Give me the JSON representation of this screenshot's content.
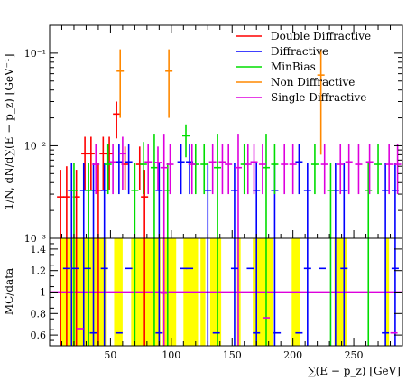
{
  "chart_data": [
    {
      "panel": "main",
      "type": "scatter",
      "style": "error-bar histogram",
      "xlabel": "∑(E − p_z) [GeV]",
      "ylabel": "1/N, dN/d∑(E − p_z) [GeV⁻¹]",
      "xlim": [
        0,
        290
      ],
      "ylim": [
        0.001,
        0.2
      ],
      "yscale": "log",
      "x_ticks": [
        50,
        100,
        150,
        200,
        250
      ],
      "y_tick_labels": [
        {
          "value": 0.001,
          "text": "10⁻³"
        },
        {
          "value": 0.01,
          "text": "10⁻²"
        },
        {
          "value": 0.1,
          "text": "10⁻¹"
        }
      ],
      "grid": false,
      "legend_position": "top-right",
      "series": [
        {
          "name": "Double Diffractive",
          "color": "#ff0000",
          "points": [
            {
              "x": 9,
              "y": 0.0028,
              "lo": 0.001,
              "hi": 0.0055
            },
            {
              "x": 14,
              "y": 0.0028,
              "lo": 0.001,
              "hi": 0.006
            },
            {
              "x": 22,
              "y": 0.0028,
              "lo": 0.001,
              "hi": 0.0055
            },
            {
              "x": 29,
              "y": 0.0082,
              "lo": 0.0033,
              "hi": 0.0125
            },
            {
              "x": 34,
              "y": 0.0082,
              "lo": 0.0033,
              "hi": 0.0125
            },
            {
              "x": 40,
              "y": 0.0033,
              "lo": 0.001,
              "hi": 0.0065
            },
            {
              "x": 44,
              "y": 0.0082,
              "lo": 0.0033,
              "hi": 0.0125
            },
            {
              "x": 49,
              "y": 0.0082,
              "lo": 0.0033,
              "hi": 0.0125
            },
            {
              "x": 55,
              "y": 0.022,
              "lo": 0.012,
              "hi": 0.03
            },
            {
              "x": 62,
              "y": 0.0063,
              "lo": 0.0033,
              "hi": 0.0098
            },
            {
              "x": 74,
              "y": 0.0063,
              "lo": 0.0033,
              "hi": 0.0098
            },
            {
              "x": 78,
              "y": 0.0028,
              "lo": 0.001,
              "hi": 0.0055
            }
          ]
        },
        {
          "name": "Diffractive",
          "color": "#0000ff",
          "points": [
            {
              "x": 18,
              "y": 0.0033,
              "lo": 0.001,
              "hi": 0.0065
            },
            {
              "x": 28,
              "y": 0.0033,
              "lo": 0.001,
              "hi": 0.0065
            },
            {
              "x": 36,
              "y": 0.0033,
              "lo": 0.001,
              "hi": 0.0065
            },
            {
              "x": 45,
              "y": 0.0033,
              "lo": 0.001,
              "hi": 0.0065
            },
            {
              "x": 57,
              "y": 0.0067,
              "lo": 0.003,
              "hi": 0.0105
            },
            {
              "x": 65,
              "y": 0.0067,
              "lo": 0.003,
              "hi": 0.0105
            },
            {
              "x": 90,
              "y": 0.0033,
              "lo": 0.001,
              "hi": 0.0065
            },
            {
              "x": 108,
              "y": 0.0067,
              "lo": 0.003,
              "hi": 0.0105
            },
            {
              "x": 115,
              "y": 0.0067,
              "lo": 0.003,
              "hi": 0.0105
            },
            {
              "x": 130,
              "y": 0.0033,
              "lo": 0.001,
              "hi": 0.0065
            },
            {
              "x": 152,
              "y": 0.0033,
              "lo": 0.001,
              "hi": 0.0065
            },
            {
              "x": 170,
              "y": 0.0033,
              "lo": 0.001,
              "hi": 0.0065
            },
            {
              "x": 185,
              "y": 0.0033,
              "lo": 0.001,
              "hi": 0.0065
            },
            {
              "x": 205,
              "y": 0.0067,
              "lo": 0.003,
              "hi": 0.0105
            },
            {
              "x": 212,
              "y": 0.0033,
              "lo": 0.001,
              "hi": 0.0065
            },
            {
              "x": 235,
              "y": 0.0033,
              "lo": 0.001,
              "hi": 0.0065
            },
            {
              "x": 242,
              "y": 0.0033,
              "lo": 0.001,
              "hi": 0.0065
            },
            {
              "x": 276,
              "y": 0.0033,
              "lo": 0.001,
              "hi": 0.0065
            },
            {
              "x": 284,
              "y": 0.0033,
              "lo": 0.001,
              "hi": 0.0065
            }
          ]
        },
        {
          "name": "MinBias",
          "color": "#00dd00",
          "points": [
            {
              "x": 20,
              "y": 0.0033,
              "lo": 0.001,
              "hi": 0.0065
            },
            {
              "x": 32,
              "y": 0.0033,
              "lo": 0.001,
              "hi": 0.0065
            },
            {
              "x": 48,
              "y": 0.0063,
              "lo": 0.003,
              "hi": 0.0105
            },
            {
              "x": 70,
              "y": 0.0033,
              "lo": 0.001,
              "hi": 0.0065
            },
            {
              "x": 77,
              "y": 0.0063,
              "lo": 0.003,
              "hi": 0.011
            },
            {
              "x": 86,
              "y": 0.0058,
              "lo": 0.001,
              "hi": 0.0135
            },
            {
              "x": 97,
              "y": 0.0033,
              "lo": 0.001,
              "hi": 0.0065
            },
            {
              "x": 112,
              "y": 0.0128,
              "lo": 0.0075,
              "hi": 0.017
            },
            {
              "x": 120,
              "y": 0.0063,
              "lo": 0.003,
              "hi": 0.0105
            },
            {
              "x": 127,
              "y": 0.0063,
              "lo": 0.003,
              "hi": 0.0105
            },
            {
              "x": 138,
              "y": 0.0058,
              "lo": 0.001,
              "hi": 0.0135
            },
            {
              "x": 160,
              "y": 0.0063,
              "lo": 0.003,
              "hi": 0.0105
            },
            {
              "x": 178,
              "y": 0.0058,
              "lo": 0.001,
              "hi": 0.0135
            },
            {
              "x": 185,
              "y": 0.0063,
              "lo": 0.003,
              "hi": 0.0105
            },
            {
              "x": 218,
              "y": 0.0063,
              "lo": 0.003,
              "hi": 0.0105
            },
            {
              "x": 231,
              "y": 0.0033,
              "lo": 0.001,
              "hi": 0.0065
            },
            {
              "x": 262,
              "y": 0.0033,
              "lo": 0.001,
              "hi": 0.0065
            },
            {
              "x": 270,
              "y": 0.0063,
              "lo": 0.003,
              "hi": 0.0105
            }
          ]
        },
        {
          "name": "Non Diffractive",
          "color": "#ff8800",
          "points": [
            {
              "x": 58,
              "y": 0.064,
              "lo": 0.02,
              "hi": 0.11
            },
            {
              "x": 98,
              "y": 0.064,
              "lo": 0.02,
              "hi": 0.11
            },
            {
              "x": 223,
              "y": 0.058,
              "lo": 0.008,
              "hi": 0.11
            }
          ]
        },
        {
          "name": "Single Diffractive",
          "color": "#dd00dd",
          "points": [
            {
              "x": 38,
              "y": 0.0063,
              "lo": 0.003,
              "hi": 0.0105
            },
            {
              "x": 52,
              "y": 0.0067,
              "lo": 0.003,
              "hi": 0.0105
            },
            {
              "x": 60,
              "y": 0.0082,
              "lo": 0.0033,
              "hi": 0.0125
            },
            {
              "x": 81,
              "y": 0.0067,
              "lo": 0.003,
              "hi": 0.0105
            },
            {
              "x": 89,
              "y": 0.0066,
              "lo": 0.0033,
              "hi": 0.0098
            },
            {
              "x": 94,
              "y": 0.0058,
              "lo": 0.001,
              "hi": 0.0135
            },
            {
              "x": 99,
              "y": 0.0063,
              "lo": 0.003,
              "hi": 0.0105
            },
            {
              "x": 117,
              "y": 0.0063,
              "lo": 0.003,
              "hi": 0.0105
            },
            {
              "x": 134,
              "y": 0.0067,
              "lo": 0.003,
              "hi": 0.0105
            },
            {
              "x": 142,
              "y": 0.0067,
              "lo": 0.003,
              "hi": 0.0105
            },
            {
              "x": 147,
              "y": 0.0063,
              "lo": 0.003,
              "hi": 0.0105
            },
            {
              "x": 155,
              "y": 0.0058,
              "lo": 0.001,
              "hi": 0.0135
            },
            {
              "x": 163,
              "y": 0.0063,
              "lo": 0.003,
              "hi": 0.0105
            },
            {
              "x": 168,
              "y": 0.0067,
              "lo": 0.003,
              "hi": 0.0105
            },
            {
              "x": 175,
              "y": 0.0063,
              "lo": 0.003,
              "hi": 0.0105
            },
            {
              "x": 193,
              "y": 0.0063,
              "lo": 0.003,
              "hi": 0.0105
            },
            {
              "x": 200,
              "y": 0.0063,
              "lo": 0.003,
              "hi": 0.0105
            },
            {
              "x": 226,
              "y": 0.0063,
              "lo": 0.003,
              "hi": 0.0105
            },
            {
              "x": 239,
              "y": 0.0063,
              "lo": 0.003,
              "hi": 0.0105
            },
            {
              "x": 246,
              "y": 0.0067,
              "lo": 0.003,
              "hi": 0.0105
            },
            {
              "x": 254,
              "y": 0.0063,
              "lo": 0.003,
              "hi": 0.0105
            },
            {
              "x": 263,
              "y": 0.0067,
              "lo": 0.003,
              "hi": 0.0105
            },
            {
              "x": 279,
              "y": 0.0063,
              "lo": 0.003,
              "hi": 0.0105
            },
            {
              "x": 286,
              "y": 0.0063,
              "lo": 0.003,
              "hi": 0.0105
            }
          ]
        }
      ]
    },
    {
      "panel": "ratio",
      "type": "scatter",
      "style": "ratio with uncertainty band",
      "xlabel": "∑(E − p_z) [GeV]",
      "ylabel": "MC/data",
      "xlim": [
        0,
        290
      ],
      "ylim": [
        0.5,
        1.5
      ],
      "y_ticks": [
        0.6,
        0.8,
        1,
        1.2,
        1.4
      ],
      "x_ticks": [
        50,
        100,
        150,
        200,
        250
      ],
      "reference_line": 1,
      "band_color": "#ffff00",
      "bands": [
        {
          "x0": 9,
          "x1": 47
        },
        {
          "x0": 53,
          "x1": 60
        },
        {
          "x0": 67,
          "x1": 91
        },
        {
          "x0": 93,
          "x1": 104
        },
        {
          "x0": 110,
          "x1": 122
        },
        {
          "x0": 124,
          "x1": 128
        },
        {
          "x0": 132,
          "x1": 141
        },
        {
          "x0": 154,
          "x1": 157
        },
        {
          "x0": 167,
          "x1": 184
        },
        {
          "x0": 199,
          "x1": 206
        },
        {
          "x0": 234,
          "x1": 244
        },
        {
          "x0": 276,
          "x1": 279
        }
      ],
      "series": [
        {
          "name": "Diffractive",
          "color": "#0000ff",
          "points": [
            {
              "x": 14,
              "y": 1.22
            },
            {
              "x": 21,
              "y": 1.22
            },
            {
              "x": 31,
              "y": 1.22
            },
            {
              "x": 36,
              "y": 0.62
            },
            {
              "x": 45,
              "y": 1.22
            },
            {
              "x": 57,
              "y": 0.62
            },
            {
              "x": 65,
              "y": 1.22
            },
            {
              "x": 90,
              "y": 0.62
            },
            {
              "x": 110,
              "y": 1.22
            },
            {
              "x": 115,
              "y": 1.22
            },
            {
              "x": 137,
              "y": 0.62
            },
            {
              "x": 152,
              "y": 1.22
            },
            {
              "x": 165,
              "y": 1.22
            },
            {
              "x": 170,
              "y": 0.62
            },
            {
              "x": 187,
              "y": 0.62
            },
            {
              "x": 205,
              "y": 0.62
            },
            {
              "x": 212,
              "y": 1.22
            },
            {
              "x": 224,
              "y": 1.22
            },
            {
              "x": 242,
              "y": 1.22
            },
            {
              "x": 276,
              "y": 0.62
            },
            {
              "x": 284,
              "y": 1.22
            }
          ]
        },
        {
          "name": "Single Diffractive",
          "color": "#dd00dd",
          "points": [
            {
              "x": 25,
              "y": 0.66
            },
            {
              "x": 94,
              "y": 0.99
            },
            {
              "x": 178,
              "y": 0.76
            },
            {
              "x": 283,
              "y": 0.62
            }
          ]
        }
      ]
    }
  ]
}
